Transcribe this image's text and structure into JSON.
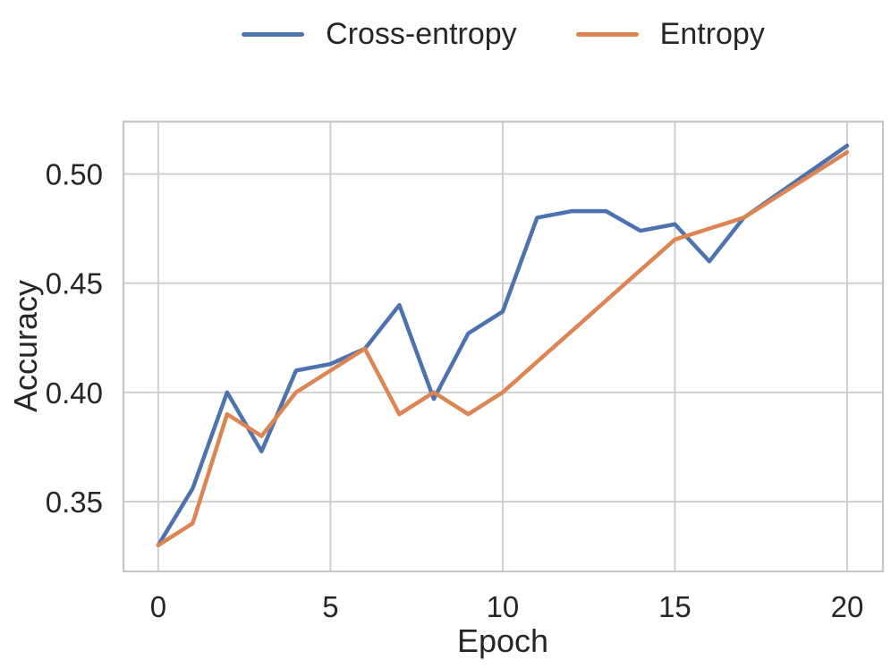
{
  "figure": {
    "legend": [
      {
        "label": "Cross-entropy",
        "color": "#4C72B0"
      },
      {
        "label": "Entropy",
        "color": "#DD8452"
      }
    ]
  },
  "chart_data": {
    "type": "line",
    "title": "",
    "xlabel": "Epoch",
    "ylabel": "Accuracy",
    "x": [
      0,
      1,
      2,
      3,
      4,
      5,
      6,
      7,
      8,
      9,
      10,
      11,
      12,
      13,
      14,
      15,
      16,
      17,
      18,
      19,
      20
    ],
    "series": [
      {
        "name": "Cross-entropy",
        "color": "#4C72B0",
        "values": [
          0.33,
          0.356,
          0.4,
          0.373,
          0.41,
          0.413,
          0.42,
          0.44,
          0.397,
          0.427,
          0.437,
          0.48,
          0.483,
          0.483,
          0.474,
          0.477,
          0.46,
          0.48,
          0.491,
          0.502,
          0.513
        ]
      },
      {
        "name": "Entropy",
        "color": "#DD8452",
        "values": [
          0.33,
          0.34,
          0.39,
          0.38,
          0.4,
          0.41,
          0.42,
          0.39,
          0.4,
          0.39,
          0.4,
          0.414,
          0.428,
          0.442,
          0.456,
          0.47,
          0.475,
          0.48,
          0.49,
          0.5,
          0.51
        ]
      }
    ],
    "xticks": [
      0,
      5,
      10,
      15,
      20
    ],
    "xtick_labels": [
      "0",
      "5",
      "10",
      "15",
      "20"
    ],
    "yticks": [
      0.35,
      0.4,
      0.45,
      0.5
    ],
    "ytick_labels": [
      "0.35",
      "0.40",
      "0.45",
      "0.50"
    ],
    "xlim": [
      -1.01,
      21.04
    ],
    "ylim": [
      0.318,
      0.524
    ],
    "grid": true,
    "legend_position": "top-center",
    "line_width": 4.5,
    "colors": {
      "grid": "#cfcfcf",
      "spine": "#c6c6c6",
      "text": "#262626",
      "background": "#ffffff"
    }
  }
}
